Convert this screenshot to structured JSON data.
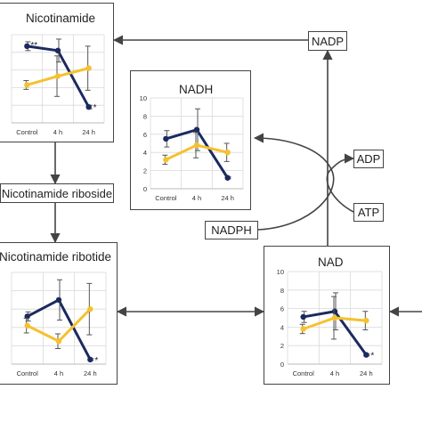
{
  "labels": {
    "nadp": "NADP",
    "adp": "ADP",
    "atp": "ATP",
    "nadph": "NADPH",
    "nicotinamide_riboside": "Nicotinamide riboside"
  },
  "colors": {
    "navy": "#1b2a5e",
    "yellow": "#f5c12e",
    "error": "#555555"
  },
  "chart_data": [
    {
      "type": "line",
      "title": "Nicotinamide",
      "categories": [
        "Control",
        "4 h",
        "24 h"
      ],
      "ylim": [
        0,
        10
      ],
      "y_ticks": [],
      "series": [
        {
          "color": "navy",
          "values": [
            8.7,
            8.2,
            1.8
          ],
          "errors": [
            0.5,
            1.3,
            0.2
          ]
        },
        {
          "color": "yellow",
          "values": [
            4.3,
            5.3,
            6.2
          ],
          "errors": [
            0.5,
            2.3,
            2.5
          ]
        }
      ],
      "annotations": [
        "**",
        "*"
      ]
    },
    {
      "type": "line",
      "title": "NADH",
      "categories": [
        "Control",
        "4 h",
        "24 h"
      ],
      "ylim": [
        0,
        10
      ],
      "y_ticks": [
        "0",
        "2",
        "4",
        "6",
        "8",
        "10"
      ],
      "series": [
        {
          "color": "navy",
          "values": [
            5.5,
            6.5,
            1.2
          ],
          "errors": [
            0.9,
            2.3,
            0.1
          ]
        },
        {
          "color": "yellow",
          "values": [
            3.2,
            4.8,
            4.0
          ],
          "errors": [
            0.5,
            1.4,
            1.0
          ]
        }
      ],
      "annotations": []
    },
    {
      "type": "line",
      "title": "Nicotinamide ribotide",
      "categories": [
        "Control",
        "4 h",
        "24 h"
      ],
      "ylim": [
        0,
        10
      ],
      "y_ticks": [],
      "series": [
        {
          "color": "navy",
          "values": [
            5.2,
            7.0,
            0.5
          ],
          "errors": [
            0.5,
            2.2,
            0.1
          ]
        },
        {
          "color": "yellow",
          "values": [
            4.2,
            2.5,
            6.0
          ],
          "errors": [
            0.8,
            0.8,
            2.8
          ]
        }
      ],
      "annotations": [
        "*"
      ]
    },
    {
      "type": "line",
      "title": "NAD",
      "categories": [
        "Control",
        "4 h",
        "24 h"
      ],
      "ylim": [
        0,
        10
      ],
      "y_ticks": [
        "0",
        "2",
        "4",
        "6",
        "8",
        "10"
      ],
      "series": [
        {
          "color": "navy",
          "values": [
            5.1,
            5.7,
            1.0
          ],
          "errors": [
            0.6,
            2.0,
            0.1
          ]
        },
        {
          "color": "yellow",
          "values": [
            3.8,
            5.0,
            4.7
          ],
          "errors": [
            0.5,
            2.3,
            1.0
          ]
        }
      ],
      "annotations": [
        "*"
      ]
    }
  ]
}
